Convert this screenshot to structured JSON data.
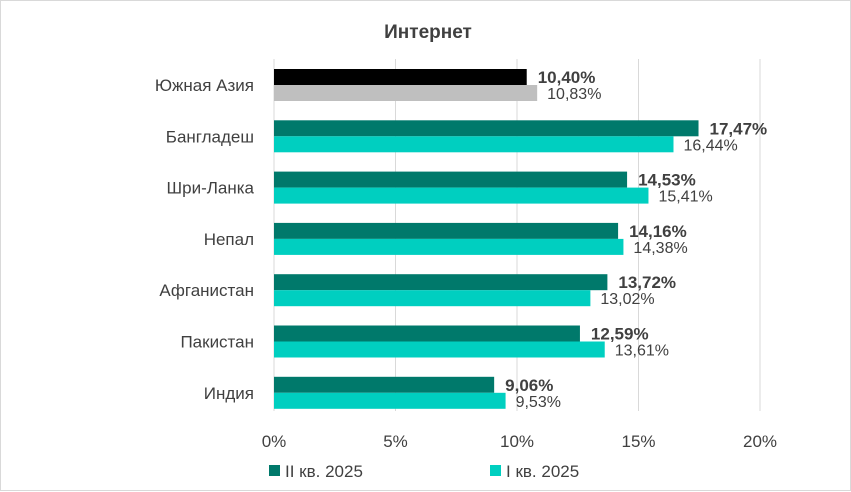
{
  "chart_data": {
    "type": "bar",
    "orientation": "horizontal",
    "title": "Интернет",
    "xlabel": "",
    "ylabel": "",
    "xlim": [
      0,
      20
    ],
    "x_ticks": [
      "0%",
      "5%",
      "10%",
      "15%",
      "20%"
    ],
    "grid": true,
    "legend_position": "bottom",
    "categories": [
      "Южная Азия",
      "Бангладеш",
      "Шри-Ланка",
      "Непал",
      "Афганистан",
      "Пакистан",
      "Индия"
    ],
    "series": [
      {
        "name": "II кв. 2025",
        "color": "#00796b",
        "values": [
          10.4,
          17.47,
          14.53,
          14.16,
          13.72,
          12.59,
          9.06
        ],
        "labels": [
          "10,40%",
          "17,47%",
          "14,53%",
          "14,16%",
          "13,72%",
          "12,59%",
          "9,06%"
        ]
      },
      {
        "name": "I кв. 2025",
        "color": "#00cfc0",
        "values": [
          10.83,
          16.44,
          15.41,
          14.38,
          13.02,
          13.61,
          9.53
        ],
        "labels": [
          "10,83%",
          "16,44%",
          "15,41%",
          "14,38%",
          "13,02%",
          "13,61%",
          "9,53%"
        ]
      }
    ],
    "highlight": {
      "category": "Южная Азия",
      "colors": [
        "#000000",
        "#bfbfbf"
      ]
    }
  }
}
